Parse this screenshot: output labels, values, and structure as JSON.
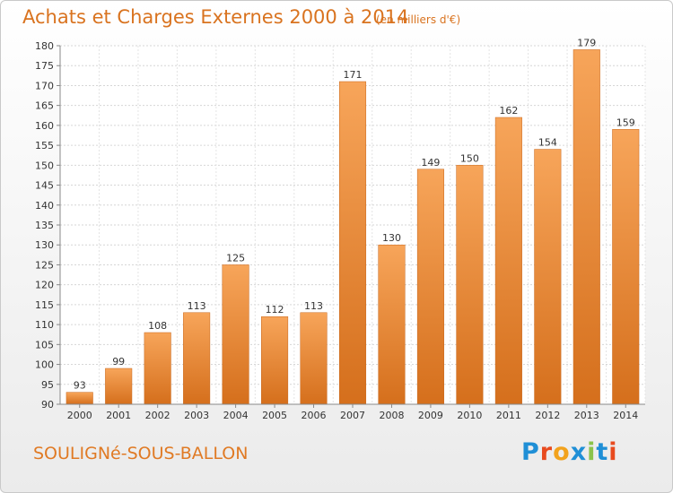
{
  "header": {
    "title": "Achats et Charges Externes 2000 à 2014",
    "unit": "(en milliers d'€)"
  },
  "footer": {
    "commune": "SOULIGNé-SOUS-BALLON",
    "logo_text": "Proxiti",
    "logo_colors": [
      "#1f8fd6",
      "#e84a1e",
      "#f2a21c",
      "#1f8fd6",
      "#8bc34a",
      "#1f8fd6",
      "#e84a1e"
    ]
  },
  "chart_data": {
    "type": "bar",
    "categories": [
      "2000",
      "2001",
      "2002",
      "2003",
      "2004",
      "2005",
      "2006",
      "2007",
      "2008",
      "2009",
      "2010",
      "2011",
      "2012",
      "2013",
      "2014"
    ],
    "values": [
      93,
      99,
      108,
      113,
      125,
      112,
      113,
      171,
      130,
      149,
      150,
      162,
      154,
      179,
      159
    ],
    "ylim": [
      90,
      180
    ],
    "yticks": [
      90,
      95,
      100,
      105,
      110,
      115,
      120,
      125,
      130,
      135,
      140,
      145,
      150,
      155,
      160,
      165,
      170,
      175,
      180
    ],
    "grid": true,
    "bar_color": "#f0943a",
    "bar_color_dark": "#d56f1c",
    "data_labels": true
  }
}
